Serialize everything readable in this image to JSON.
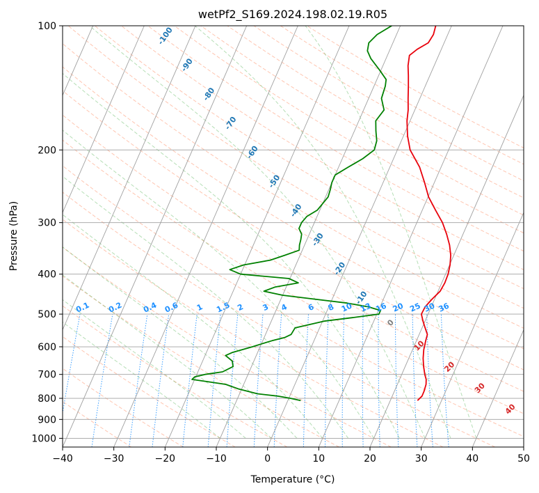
{
  "chart_data": {
    "type": "line",
    "diagram": "skew-t log-p",
    "title": "wetPf2_S169.2024.198.02.19.R05",
    "xlabel": "Temperature (°C)",
    "ylabel": "Pressure (hPa)",
    "xlim": [
      -40,
      50
    ],
    "ylim": [
      1050,
      100
    ],
    "y_scale": "log",
    "grid": true,
    "x_ticks": [
      -40,
      -30,
      -20,
      -10,
      0,
      10,
      20,
      30,
      40,
      50
    ],
    "y_ticks": [
      100,
      200,
      300,
      400,
      500,
      600,
      700,
      800,
      900,
      1000
    ],
    "colors": {
      "temperature": "#e8000b",
      "dewpoint": "#008000",
      "dry_adiabat": "#ff7f50",
      "moist_adiabat": "#2ca02c",
      "mixing_ratio": "#1e90ff",
      "isotherm_grid": "#a0a0a0",
      "moist_label": "#1f77b4",
      "dry_label": "#d62728"
    },
    "series": [
      {
        "role": "temperature",
        "pressure": [
          810,
          790,
          770,
          740,
          720,
          700,
          670,
          640,
          610,
          580,
          560,
          540,
          520,
          500,
          480,
          460,
          440,
          420,
          400,
          380,
          360,
          340,
          320,
          300,
          280,
          260,
          240,
          220,
          200,
          185,
          170,
          160,
          150,
          140,
          132,
          125,
          118,
          114,
          110,
          105,
          100
        ],
        "temp": [
          25.3,
          25.8,
          25.8,
          25.6,
          25.2,
          24.5,
          23.6,
          22.8,
          22.2,
          21.8,
          21.6,
          20.6,
          19.6,
          18.7,
          18.8,
          19.5,
          20.4,
          20.6,
          20.5,
          20.1,
          19.4,
          18.3,
          16.8,
          15.0,
          12.6,
          10.1,
          8.1,
          5.8,
          2.5,
          0.8,
          -0.6,
          -1.3,
          -2.3,
          -3.3,
          -4.2,
          -5.1,
          -5.7,
          -4.7,
          -3.1,
          -2.8,
          -3.1
        ]
      },
      {
        "role": "dewpoint",
        "pressure": [
          810,
          800,
          790,
          780,
          760,
          740,
          730,
          720,
          710,
          700,
          690,
          670,
          650,
          640,
          630,
          620,
          600,
          590,
          580,
          570,
          560,
          540,
          520,
          510,
          500,
          490,
          480,
          470,
          460,
          450,
          440,
          430,
          420,
          410,
          400,
          390,
          380,
          370,
          360,
          350,
          340,
          330,
          320,
          310,
          300,
          290,
          280,
          260,
          250,
          240,
          230,
          220,
          210,
          200,
          190,
          180,
          170,
          160,
          150,
          140,
          135,
          128,
          120,
          115,
          110,
          105,
          100
        ],
        "dewpoint": [
          2.5,
          0.3,
          -2.4,
          -6.5,
          -10.5,
          -13.5,
          -16.9,
          -20.5,
          -20.2,
          -18.4,
          -15.2,
          -13.6,
          -14.2,
          -15.1,
          -16.0,
          -15.0,
          -11.5,
          -9.9,
          -8.2,
          -6.0,
          -5.0,
          -4.8,
          0.3,
          5.5,
          10.4,
          10.4,
          7.7,
          3.2,
          -3.4,
          -10.0,
          -14.0,
          -12.2,
          -8.0,
          -10.2,
          -20.0,
          -22.5,
          -20.2,
          -15.4,
          -13.0,
          -10.6,
          -11.0,
          -11.2,
          -11.5,
          -12.5,
          -12.5,
          -12.0,
          -10.5,
          -9.5,
          -9.7,
          -10.0,
          -10.0,
          -8.1,
          -6.0,
          -4.5,
          -4.8,
          -5.8,
          -6.7,
          -6.0,
          -7.5,
          -7.8,
          -8.2,
          -10.3,
          -13.0,
          -14.3,
          -14.7,
          -13.8,
          -11.7
        ]
      }
    ],
    "dry_adiabat_labels": [
      "10",
      "20",
      "30",
      "40"
    ],
    "dry_adiabat_label_values": [
      10,
      20,
      30,
      40
    ],
    "moist_adiabat_labels": [
      "-100",
      "-90",
      "-80",
      "-70",
      "-60",
      "-50",
      "-40",
      "-30",
      "-20",
      "-10"
    ],
    "moist_adiabat_label_values": [
      -100,
      -90,
      -80,
      -70,
      -60,
      -50,
      -40,
      -30,
      -20,
      -10
    ],
    "zero_label": "0",
    "mixing_ratio_labels": [
      "0.1",
      "0.2",
      "0.4",
      "0.6",
      "1",
      "1.5",
      "2",
      "3",
      "4",
      "6",
      "8",
      "10",
      "13",
      "16",
      "20",
      "25",
      "30",
      "36"
    ],
    "mixing_ratio_values": [
      0.1,
      0.2,
      0.4,
      0.6,
      1,
      1.5,
      2,
      3,
      4,
      6,
      8,
      10,
      13,
      16,
      20,
      25,
      30,
      36
    ]
  }
}
